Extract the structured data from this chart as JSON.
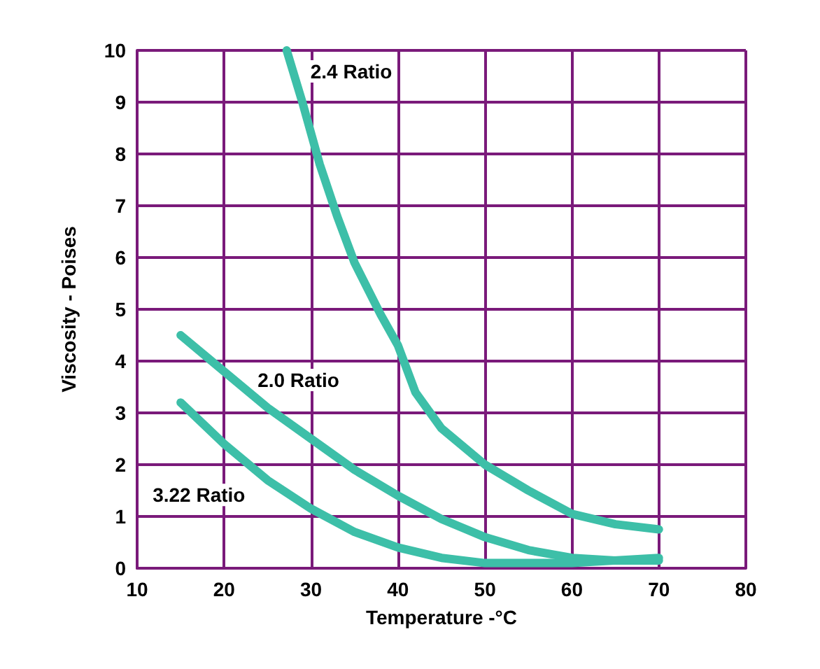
{
  "chart_data": {
    "type": "line",
    "xlabel": "Temperature -°C",
    "ylabel": "Viscosity - Poises",
    "xlim": [
      10,
      80
    ],
    "xticks": [
      10,
      20,
      30,
      40,
      50,
      60,
      70,
      80
    ],
    "ylim": [
      0,
      10
    ],
    "yticks": [
      0,
      1,
      2,
      3,
      4,
      5,
      6,
      7,
      8,
      9,
      10
    ],
    "grid": true,
    "marker": "none",
    "line_style": "solid",
    "series": [
      {
        "name": "2.4 Ratio",
        "color": "#3dbfa8",
        "x": [
          27.2,
          29,
          31,
          33,
          35,
          38,
          40,
          42,
          45,
          50,
          55,
          60,
          65,
          70
        ],
        "values": [
          10,
          9,
          7.8,
          6.8,
          5.9,
          4.9,
          4.3,
          3.4,
          2.7,
          2.0,
          1.5,
          1.05,
          0.85,
          0.75
        ]
      },
      {
        "name": "2.0 Ratio",
        "color": "#3dbfa8",
        "x": [
          15,
          20,
          25,
          30,
          35,
          40,
          45,
          50,
          55,
          60,
          65,
          70
        ],
        "values": [
          4.5,
          3.8,
          3.1,
          2.5,
          1.9,
          1.4,
          0.95,
          0.6,
          0.35,
          0.2,
          0.15,
          0.15
        ]
      },
      {
        "name": "3.22 Ratio",
        "color": "#3dbfa8",
        "x": [
          15,
          20,
          25,
          30,
          35,
          40,
          45,
          50,
          60,
          70
        ],
        "values": [
          3.2,
          2.4,
          1.7,
          1.15,
          0.7,
          0.4,
          0.2,
          0.1,
          0.1,
          0.2
        ]
      }
    ]
  }
}
